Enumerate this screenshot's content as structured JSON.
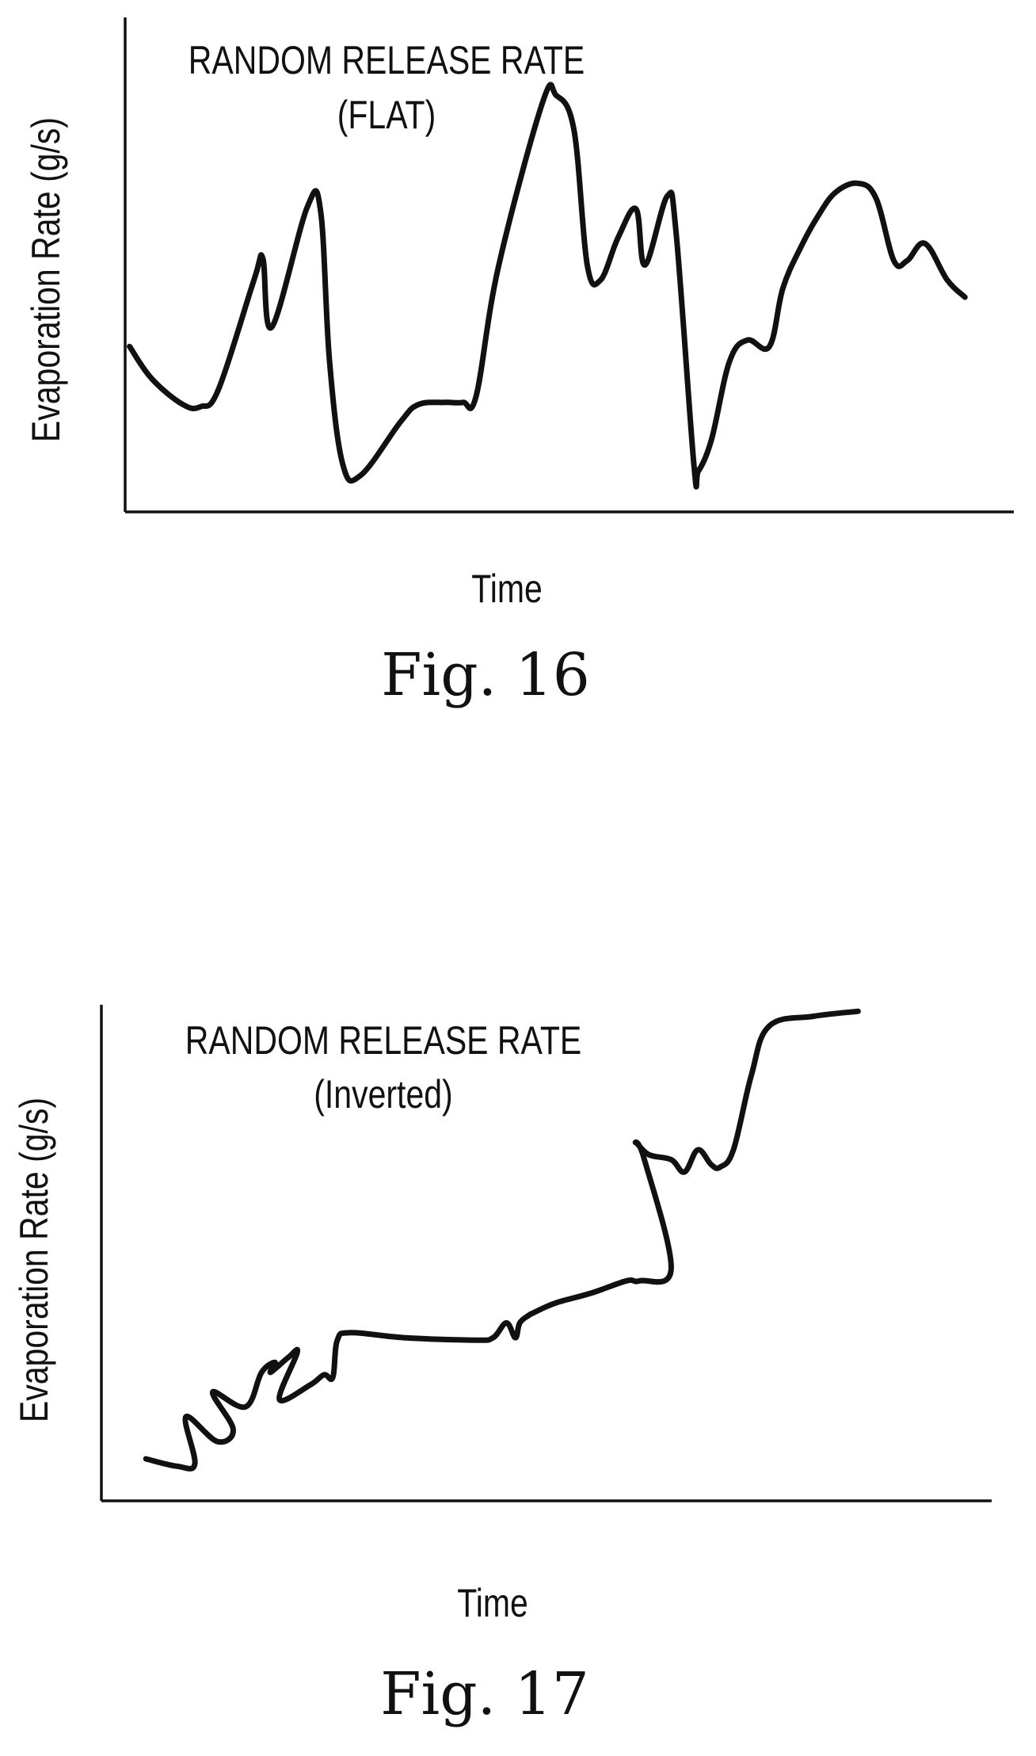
{
  "chart_data": [
    {
      "type": "line",
      "title": "RANDOM RELEASE RATE",
      "subtitle": "(FLAT)",
      "xlabel": "Time",
      "ylabel": "Evaporation Rate (g/s)",
      "caption": "Fig. 16",
      "grid": false,
      "legend": "none",
      "xlim": [
        0,
        1
      ],
      "ylim": [
        0,
        1
      ],
      "series": [
        {
          "x": [
            0.005,
            0.03,
            0.065,
            0.085,
            0.105,
            0.145,
            0.155,
            0.165,
            0.205,
            0.22,
            0.23,
            0.245,
            0.265,
            0.31,
            0.33,
            0.36,
            0.38,
            0.395,
            0.42,
            0.47,
            0.485,
            0.505,
            0.52,
            0.535,
            0.555,
            0.575,
            0.585,
            0.61,
            0.62,
            0.64,
            0.645,
            0.66,
            0.68,
            0.7,
            0.725,
            0.74,
            0.76,
            0.78,
            0.8,
            0.825,
            0.845,
            0.865,
            0.88,
            0.9,
            0.925,
            0.945
          ],
          "values": [
            0.385,
            0.31,
            0.25,
            0.245,
            0.285,
            0.54,
            0.59,
            0.43,
            0.71,
            0.7,
            0.35,
            0.11,
            0.085,
            0.21,
            0.25,
            0.255,
            0.255,
            0.27,
            0.57,
            0.955,
            0.97,
            0.89,
            0.575,
            0.54,
            0.64,
            0.705,
            0.575,
            0.735,
            0.65,
            0.11,
            0.095,
            0.17,
            0.35,
            0.4,
            0.385,
            0.52,
            0.615,
            0.69,
            0.745,
            0.765,
            0.73,
            0.585,
            0.585,
            0.625,
            0.54,
            0.5
          ]
        }
      ]
    },
    {
      "type": "line",
      "title": "RANDOM RELEASE RATE",
      "subtitle": "(Inverted)",
      "xlabel": "Time",
      "ylabel": "Evaporation Rate (g/s)",
      "caption": "Fig. 17",
      "grid": false,
      "legend": "none",
      "xlim": [
        0,
        1
      ],
      "ylim": [
        0,
        1
      ],
      "series": [
        {
          "x": [
            0.05,
            0.085,
            0.105,
            0.095,
            0.13,
            0.148,
            0.125,
            0.162,
            0.18,
            0.195,
            0.19,
            0.21,
            0.22,
            0.2,
            0.235,
            0.25,
            0.26,
            0.265,
            0.28,
            0.34,
            0.42,
            0.44,
            0.455,
            0.465,
            0.47,
            0.48,
            0.485,
            0.51,
            0.55,
            0.59,
            0.605,
            0.64,
            0.61,
            0.6,
            0.615,
            0.64,
            0.655,
            0.67,
            0.685,
            0.695,
            0.71,
            0.73,
            0.75,
            0.8,
            0.85
          ],
          "values": [
            0.085,
            0.07,
            0.075,
            0.17,
            0.12,
            0.145,
            0.22,
            0.19,
            0.26,
            0.28,
            0.26,
            0.29,
            0.3,
            0.205,
            0.235,
            0.255,
            0.25,
            0.325,
            0.34,
            0.33,
            0.325,
            0.33,
            0.36,
            0.33,
            0.36,
            0.375,
            0.38,
            0.4,
            0.42,
            0.445,
            0.445,
            0.47,
            0.69,
            0.725,
            0.7,
            0.69,
            0.665,
            0.71,
            0.68,
            0.675,
            0.71,
            0.86,
            0.96,
            0.98,
            0.99
          ]
        }
      ]
    }
  ]
}
